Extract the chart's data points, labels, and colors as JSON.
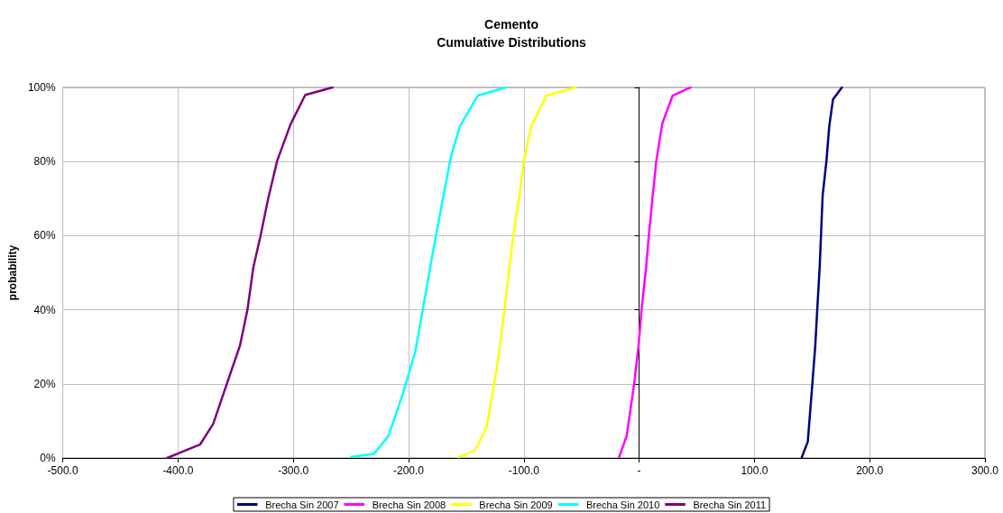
{
  "chart_data": {
    "type": "line",
    "title": "Cemento",
    "subtitle": "Cumulative Distributions",
    "ylabel": "probability",
    "xlim": [
      -500,
      300
    ],
    "xticks": [
      {
        "value": -500,
        "label": "-500.0"
      },
      {
        "value": -400,
        "label": "-400.0"
      },
      {
        "value": -300,
        "label": "-300.0"
      },
      {
        "value": -200,
        "label": "-200.0"
      },
      {
        "value": -100,
        "label": "-100.0"
      },
      {
        "value": 0,
        "label": "-"
      },
      {
        "value": 100,
        "label": "100.0"
      },
      {
        "value": 200,
        "label": "200.0"
      },
      {
        "value": 300,
        "label": "300.0"
      }
    ],
    "ylim": [
      0,
      100
    ],
    "yticks": [
      {
        "value": 0,
        "label": "0%"
      },
      {
        "value": 20,
        "label": "20%"
      },
      {
        "value": 40,
        "label": "40%"
      },
      {
        "value": 60,
        "label": "60%"
      },
      {
        "value": 80,
        "label": "80%"
      },
      {
        "value": 100,
        "label": "100%"
      }
    ],
    "grid": true,
    "legend": "bottom",
    "marker": "none",
    "line_style": "solid",
    "series": [
      {
        "name": "Brecha Sin 2007",
        "color": "#000080",
        "x": [
          141.1,
          146.3,
          150.2,
          152.8,
          154.5,
          156.6,
          159.2,
          162.5,
          164.9,
          168.2,
          175.9
        ],
        "values": [
          0.2,
          4.4,
          19.8,
          30.3,
          40,
          51.4,
          70.9,
          80.2,
          89.5,
          96.8,
          100
        ]
      },
      {
        "name": "Brecha Sin 2008",
        "color": "#ff00ff",
        "x": [
          -17.3,
          -10.8,
          -4.4,
          -0.5,
          2.1,
          6,
          8.5,
          11.8,
          14.9,
          20.1,
          29.1,
          44.6
        ],
        "values": [
          0.3,
          6,
          19.8,
          30.3,
          40,
          51.4,
          60.3,
          70.9,
          80.2,
          90.3,
          97.8,
          100
        ]
      },
      {
        "name": "Brecha Sin 2009",
        "color": "#ffff00",
        "x": [
          -156.7,
          -142.6,
          -132.3,
          -125.8,
          -120.7,
          -116.8,
          -112.9,
          -109.1,
          -103.9,
          -100,
          -93.6,
          -80.7,
          -55
        ],
        "values": [
          0.2,
          1.9,
          8.4,
          19.8,
          30.3,
          40,
          50.6,
          60.3,
          70.9,
          80.2,
          89.5,
          97.8,
          100
        ]
      },
      {
        "name": "Brecha Sin 2010",
        "color": "#00ffff",
        "x": [
          -249.6,
          -230.2,
          -217.4,
          -205.8,
          -194.2,
          -187.7,
          -181.3,
          -176.1,
          -169.7,
          -163.2,
          -155.5,
          -140,
          -115.5
        ],
        "values": [
          0.3,
          1.1,
          6,
          16.5,
          28.7,
          40,
          51.4,
          60.3,
          70.9,
          81.4,
          89.5,
          97.8,
          100
        ]
      },
      {
        "name": "Brecha Sin 2011",
        "color": "#800080",
        "x": [
          -409.5,
          -397.9,
          -381,
          -369.5,
          -357.9,
          -346.3,
          -339.8,
          -334.7,
          -328.2,
          -321.8,
          -314,
          -302.5,
          -289.6,
          -266
        ],
        "values": [
          0,
          1.5,
          3.6,
          9.2,
          19.8,
          30.3,
          40,
          51.4,
          60.3,
          70,
          80.2,
          90,
          98,
          100
        ]
      }
    ]
  }
}
